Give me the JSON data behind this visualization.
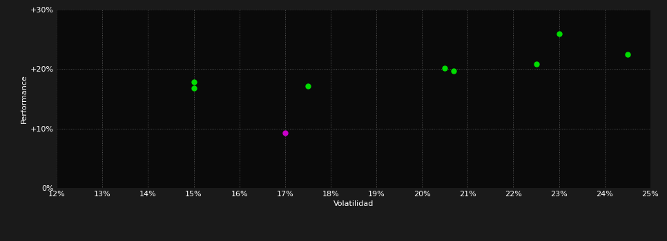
{
  "background_color": "#1a1a1a",
  "plot_bg_color": "#0a0a0a",
  "grid_color": "#555555",
  "text_color": "#ffffff",
  "xlabel": "Volatilidad",
  "ylabel": "Performance",
  "xlim": [
    0.12,
    0.25
  ],
  "ylim": [
    0.0,
    0.3
  ],
  "green_points": [
    [
      0.15,
      0.178
    ],
    [
      0.15,
      0.168
    ],
    [
      0.175,
      0.172
    ],
    [
      0.205,
      0.201
    ],
    [
      0.207,
      0.197
    ],
    [
      0.225,
      0.208
    ],
    [
      0.23,
      0.26
    ],
    [
      0.245,
      0.225
    ]
  ],
  "pink_points": [
    [
      0.17,
      0.093
    ]
  ],
  "green_color": "#00dd00",
  "pink_color": "#cc00cc",
  "marker_size": 5,
  "font_size_labels": 8,
  "font_size_axis_label": 8
}
